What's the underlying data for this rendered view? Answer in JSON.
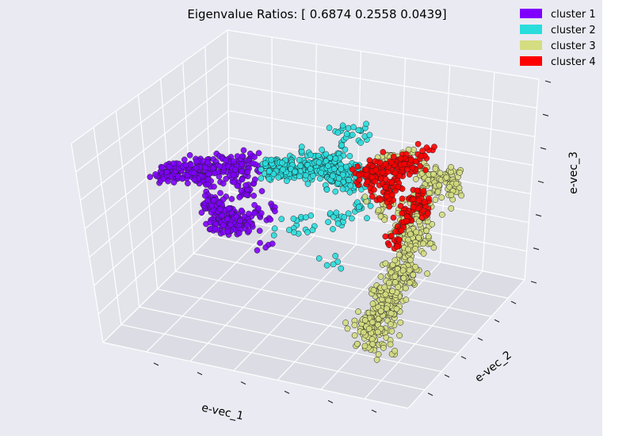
{
  "chart_data": {
    "type": "scatter",
    "projection": "3d",
    "title": "Eigenvalue Ratios: [ 0.6874  0.2558  0.0439]",
    "xlabel": "e-vec_1",
    "ylabel": "e-vec_2",
    "zlabel": "e-vec_3",
    "grid": true,
    "tick_labels_shown": false,
    "legend_position": "top-right",
    "series": [
      {
        "name": "cluster 1",
        "color": "#8000ff"
      },
      {
        "name": "cluster 2",
        "color": "#2adddd"
      },
      {
        "name": "cluster 3",
        "color": "#d4dd80"
      },
      {
        "name": "cluster 4",
        "color": "#ff0000"
      }
    ]
  }
}
